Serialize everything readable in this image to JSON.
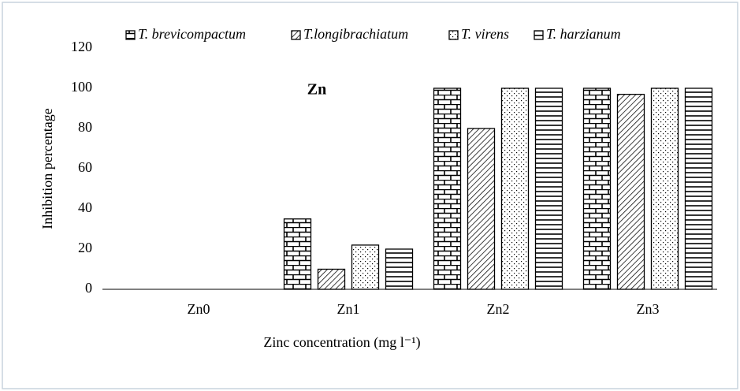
{
  "chart_data": {
    "type": "bar",
    "annotation": "Zn",
    "x_label": "Zinc concentration (mg l⁻¹)",
    "y_label": "Inhibition percentage",
    "categories": [
      "Zn0",
      "Zn1",
      "Zn2",
      "Zn3"
    ],
    "series": [
      {
        "name": "T. brevicompactum",
        "color": "#000000",
        "pattern": "brick",
        "values": [
          0,
          35,
          100,
          100
        ]
      },
      {
        "name": "T.longibrachiatum",
        "color": "#000000",
        "pattern": "diagonal",
        "values": [
          0,
          10,
          80,
          97
        ]
      },
      {
        "name": "T. virens",
        "color": "#000000",
        "pattern": "dots",
        "values": [
          0,
          22,
          100,
          100
        ]
      },
      {
        "name": "T. harzianum",
        "color": "#000000",
        "pattern": "horizontal",
        "values": [
          0,
          20,
          100,
          100
        ]
      }
    ],
    "ylim": [
      0,
      120
    ],
    "yticks": [
      0,
      20,
      40,
      60,
      80,
      100,
      120
    ],
    "grid": false,
    "legend": "top"
  }
}
